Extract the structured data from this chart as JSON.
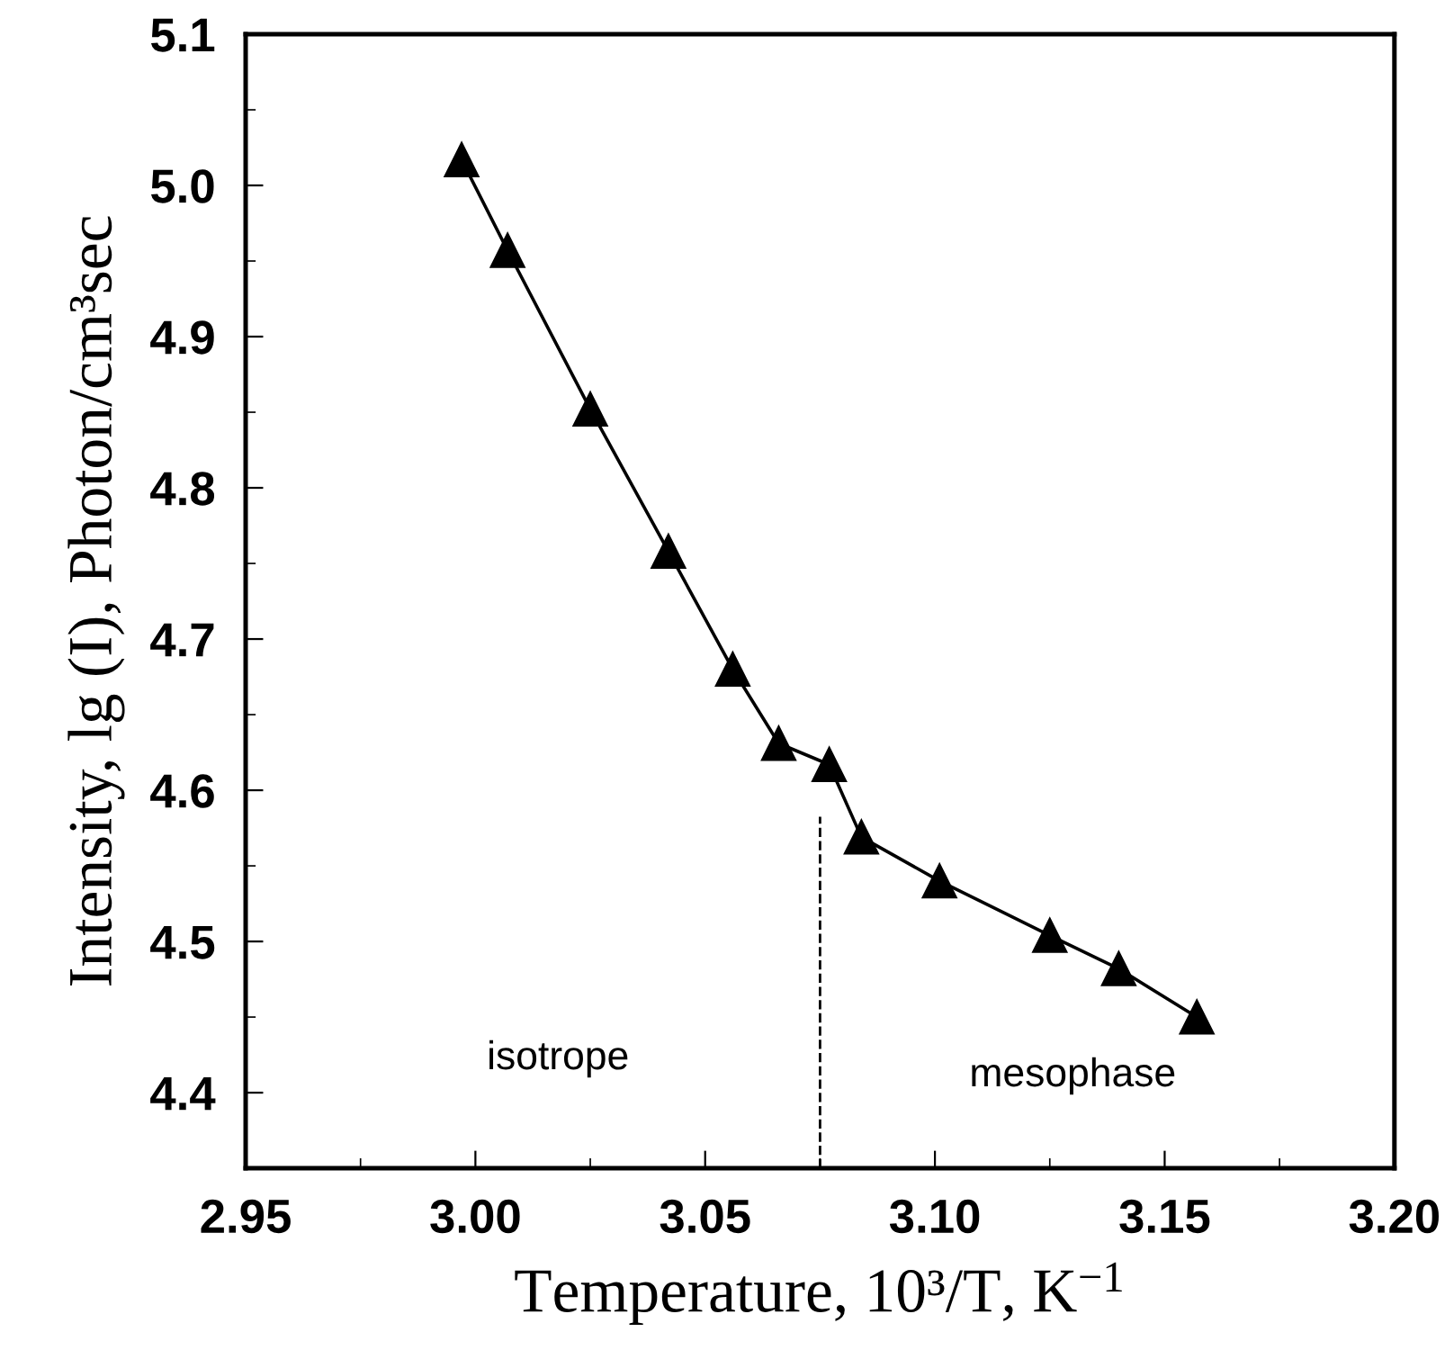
{
  "chart_data": {
    "type": "line",
    "xlabel": "Temperature, 10³/T, K$^{−1}$",
    "ylabel": "Intensity, lg (I), Photon/cm³sec",
    "x": [
      2.997,
      3.007,
      3.025,
      3.042,
      3.056,
      3.066,
      3.077,
      3.084,
      3.101,
      3.125,
      3.14,
      3.157
    ],
    "series": [
      {
        "color": "#000000",
        "values": [
          5.017,
          4.957,
          4.852,
          4.758,
          4.68,
          4.631,
          4.617,
          4.569,
          4.54,
          4.504,
          4.482,
          4.45
        ]
      }
    ],
    "marker": "triangle",
    "line_style": "solid",
    "xlim": [
      2.95,
      3.2
    ],
    "xticks": [
      {
        "value": 2.95,
        "label": "2.95"
      },
      {
        "value": 3.0,
        "label": "3.00"
      },
      {
        "value": 3.05,
        "label": "3.05"
      },
      {
        "value": 3.1,
        "label": "3.10"
      },
      {
        "value": 3.15,
        "label": "3.15"
      },
      {
        "value": 3.2,
        "label": "3.20"
      }
    ],
    "ylim": [
      4.35,
      5.1
    ],
    "yticks": [
      4.4,
      4.5,
      4.6,
      4.7,
      4.8,
      4.9,
      {
        "value": 5.0,
        "label": "5.0"
      },
      5.1
    ],
    "ref_lines": [
      {
        "axis": "x",
        "value": 3.075,
        "line_style": "dashed"
      }
    ],
    "annotations": [
      "isotrope",
      "mesophase"
    ],
    "grid": false,
    "legend": false
  }
}
